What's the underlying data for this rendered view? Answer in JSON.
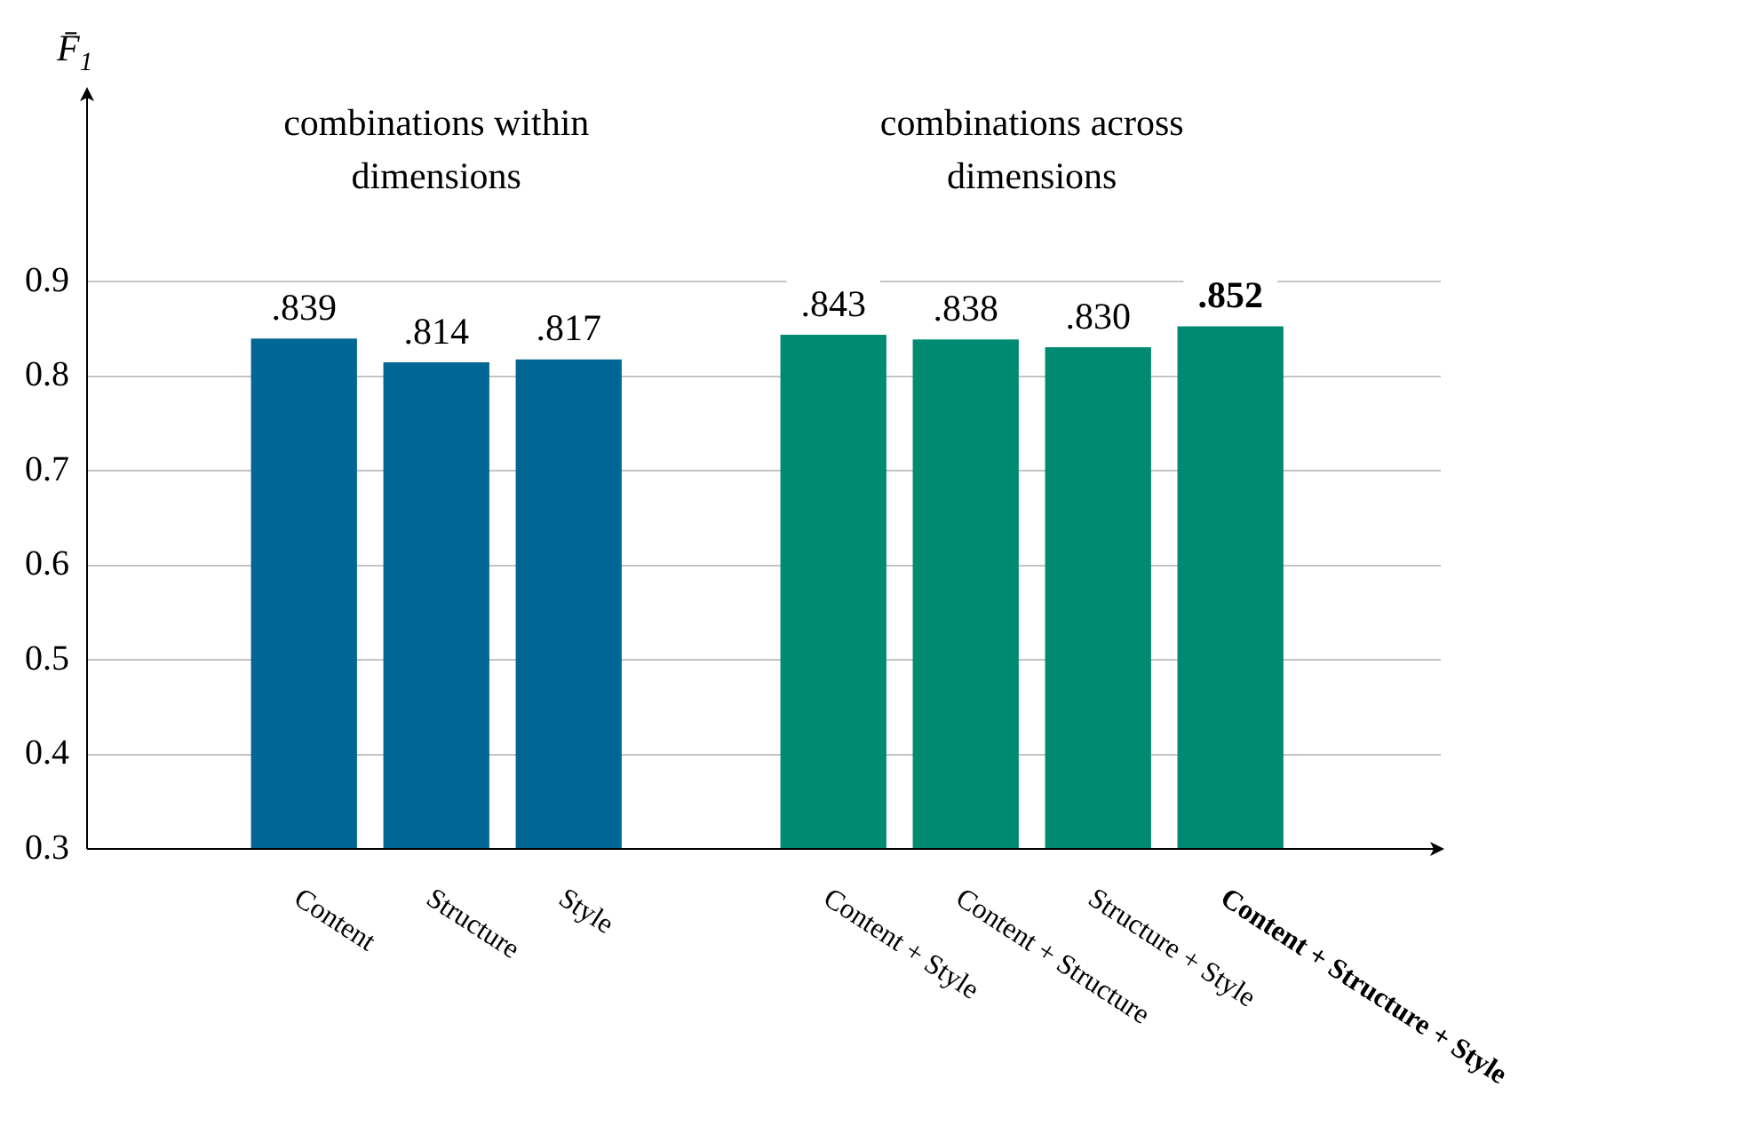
{
  "chart_data": {
    "type": "bar",
    "categories": [
      "Content",
      "Structure",
      "Style",
      null,
      "Content + Style",
      "Content + Structure",
      "Structure + Style",
      "Content + Structure + Style"
    ],
    "values": [
      0.839,
      0.814,
      0.817,
      null,
      0.843,
      0.838,
      0.83,
      0.852
    ],
    "colors": [
      "#006694",
      "#006694",
      "#006694",
      null,
      "#008a72",
      "#008a72",
      "#008a72",
      "#008a72"
    ],
    "value_labels": [
      ".839",
      ".814",
      ".817",
      null,
      ".843",
      ".838",
      ".830",
      ".852"
    ],
    "ylabel": "F̄$_{1}$",
    "annotations": [
      "combinations within dimensions",
      "combinations across dimensions"
    ],
    "ylim": [
      0.3,
      1.1
    ],
    "yticks": [
      0.3,
      0.4,
      0.5,
      0.6,
      0.7,
      0.8,
      0.9
    ],
    "grid": "y",
    "legend": false
  }
}
